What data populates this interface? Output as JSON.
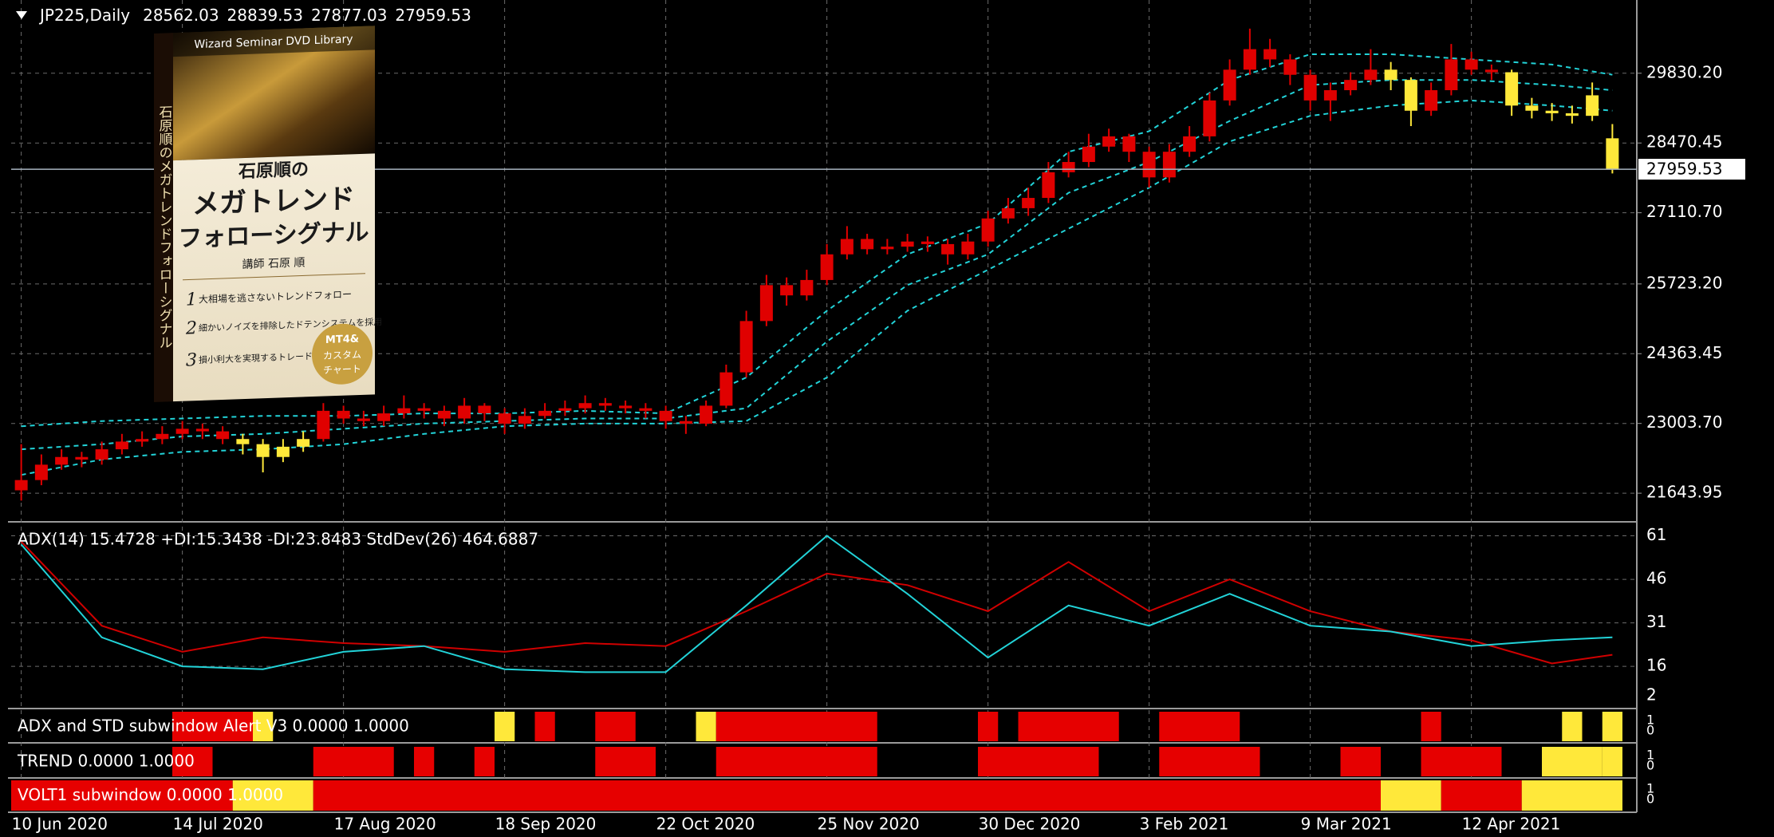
{
  "chart_data": [
    {
      "type": "candlestick",
      "title": "JP225,Daily",
      "categories": [
        "10 Jun 2020",
        null,
        null,
        null,
        null,
        null,
        null,
        null,
        "14 Jul 2020",
        null,
        null,
        null,
        null,
        null,
        null,
        null,
        "17 Aug 2020",
        null,
        null,
        null,
        null,
        null,
        null,
        null,
        "18 Sep 2020",
        null,
        null,
        null,
        null,
        null,
        null,
        null,
        "22 Oct 2020",
        null,
        null,
        null,
        null,
        null,
        null,
        null,
        "25 Nov 2020",
        null,
        null,
        null,
        null,
        null,
        null,
        null,
        "30 Dec 2020",
        null,
        null,
        null,
        null,
        null,
        null,
        null,
        "3 Feb 2021",
        null,
        null,
        null,
        null,
        null,
        null,
        null,
        "9 Mar 2021",
        null,
        null,
        null,
        null,
        null,
        null,
        null,
        "12 Apr 2021",
        null,
        null,
        null,
        null,
        null,
        null,
        null
      ],
      "open": [
        21700,
        21900,
        22200,
        22350,
        22300,
        22500,
        22650,
        22700,
        22800,
        22900,
        22850,
        22700,
        22600,
        22350,
        22550,
        22700,
        23250,
        23100,
        23050,
        23200,
        23300,
        23250,
        23100,
        23350,
        23200,
        23000,
        23150,
        23250,
        23300,
        23400,
        23350,
        23300,
        23250,
        23050,
        23000,
        23350,
        24000,
        25000,
        25700,
        25500,
        25800,
        26300,
        26600,
        26400,
        26450,
        26550,
        26500,
        26300,
        26550,
        27000,
        27200,
        27400,
        27900,
        28100,
        28400,
        28600,
        28300,
        27800,
        28300,
        28600,
        29300,
        29900,
        30300,
        30100,
        29800,
        29300,
        29500,
        29700,
        29900,
        29700,
        29100,
        29500,
        30100,
        29900,
        29850,
        29200,
        29100,
        29050,
        29000,
        28562.03
      ],
      "high": [
        22600,
        22400,
        22500,
        22450,
        22650,
        22800,
        22850,
        22950,
        23050,
        23000,
        22950,
        22800,
        22700,
        22700,
        22850,
        23400,
        23350,
        23250,
        23350,
        23550,
        23400,
        23350,
        23500,
        23400,
        23300,
        23300,
        23400,
        23450,
        23550,
        23500,
        23450,
        23400,
        23350,
        23150,
        23450,
        24150,
        25200,
        25900,
        25850,
        26000,
        26500,
        26850,
        26700,
        26600,
        26700,
        26650,
        26600,
        26700,
        27150,
        27400,
        27600,
        28100,
        28300,
        28650,
        28750,
        28650,
        28400,
        28450,
        28800,
        29450,
        30100,
        30700,
        30500,
        30200,
        29900,
        29650,
        29850,
        30300,
        30050,
        29750,
        29650,
        30400,
        30250,
        30000,
        29900,
        29350,
        29250,
        29200,
        29650,
        28839.53
      ],
      "low": [
        21500,
        21800,
        22100,
        22150,
        22200,
        22400,
        22550,
        22600,
        22700,
        22700,
        22600,
        22400,
        22050,
        22250,
        22450,
        22650,
        23000,
        22950,
        22950,
        23100,
        23100,
        22950,
        23000,
        23050,
        22800,
        22900,
        23100,
        23150,
        23200,
        23250,
        23200,
        23100,
        22900,
        22800,
        22950,
        23300,
        23900,
        24900,
        25300,
        25400,
        25700,
        26200,
        26300,
        26300,
        26350,
        26350,
        26100,
        26200,
        26450,
        26900,
        27050,
        27300,
        27800,
        28000,
        28300,
        28100,
        27600,
        27700,
        28200,
        28500,
        29200,
        29800,
        29950,
        29600,
        29100,
        28900,
        29400,
        29600,
        29500,
        28800,
        29000,
        29400,
        29800,
        29700,
        29000,
        28950,
        28900,
        28850,
        28900,
        27877.03
      ],
      "close": [
        21900,
        22200,
        22350,
        22300,
        22500,
        22650,
        22700,
        22800,
        22900,
        22850,
        22700,
        22600,
        22350,
        22550,
        22700,
        23250,
        23100,
        23050,
        23200,
        23300,
        23250,
        23100,
        23350,
        23200,
        23000,
        23150,
        23250,
        23300,
        23400,
        23350,
        23300,
        23250,
        23050,
        23000,
        23350,
        24000,
        25000,
        25700,
        25500,
        25800,
        26300,
        26600,
        26400,
        26450,
        26550,
        26500,
        26300,
        26550,
        27000,
        27200,
        27400,
        27900,
        28100,
        28400,
        28600,
        28300,
        27800,
        28300,
        28600,
        29300,
        29900,
        30300,
        30100,
        29800,
        29300,
        29500,
        29700,
        29900,
        29700,
        29100,
        29500,
        30100,
        29900,
        29850,
        29200,
        29100,
        29050,
        29000,
        29400,
        27959.53
      ],
      "colors": [
        "#e00000",
        "#e00000",
        "#e00000",
        "#e00000",
        "#e00000",
        "#e00000",
        "#e00000",
        "#e00000",
        "#e00000",
        "#e00000",
        "#e00000",
        "#ffe83a",
        "#ffe83a",
        "#ffe83a",
        "#ffe83a",
        "#e00000",
        "#e00000",
        "#e00000",
        "#e00000",
        "#e00000",
        "#e00000",
        "#e00000",
        "#e00000",
        "#e00000",
        "#e00000",
        "#e00000",
        "#e00000",
        "#e00000",
        "#e00000",
        "#e00000",
        "#e00000",
        "#e00000",
        "#e00000",
        "#e00000",
        "#e00000",
        "#e00000",
        "#e00000",
        "#e00000",
        "#e00000",
        "#e00000",
        "#e00000",
        "#e00000",
        "#e00000",
        "#e00000",
        "#e00000",
        "#e00000",
        "#e00000",
        "#e00000",
        "#e00000",
        "#e00000",
        "#e00000",
        "#e00000",
        "#e00000",
        "#e00000",
        "#e00000",
        "#e00000",
        "#e00000",
        "#e00000",
        "#e00000",
        "#e00000",
        "#e00000",
        "#e00000",
        "#e00000",
        "#e00000",
        "#e00000",
        "#e00000",
        "#e00000",
        "#e00000",
        "#ffe83a",
        "#ffe83a",
        "#e00000",
        "#e00000",
        "#e00000",
        "#e00000",
        "#ffe83a",
        "#ffe83a",
        "#ffe83a",
        "#ffe83a",
        "#ffe83a",
        "#ffe83a"
      ],
      "ylim": [
        21117,
        31258
      ],
      "yticks": [
        {
          "value": 29830.2,
          "label": "29830.20"
        },
        {
          "value": 28470.45,
          "label": "28470.45"
        },
        {
          "value": 27110.7,
          "label": "27110.70"
        },
        {
          "value": 25723.2,
          "label": "25723.20"
        },
        {
          "value": 24363.45,
          "label": "24363.45"
        },
        {
          "value": 23003.7,
          "label": "23003.70"
        },
        {
          "value": 21643.95,
          "label": "21643.95"
        }
      ],
      "grid": true,
      "bands": {
        "x": [
          0,
          4,
          8,
          12,
          16,
          20,
          24,
          28,
          32,
          36,
          40,
          44,
          48,
          52,
          56,
          60,
          64,
          68,
          72,
          76,
          79
        ],
        "color": "#22d3d8",
        "series": [
          {
            "values": [
              22950,
              23050,
              23100,
              23150,
              23150,
              23200,
              23200,
              23250,
              23200,
              23900,
              25200,
              26300,
              26900,
              28300,
              28700,
              29700,
              30200,
              30200,
              30100,
              30000,
              29800
            ]
          },
          {
            "values": [
              22500,
              22600,
              22750,
              22800,
              22900,
              23000,
              23050,
              23100,
              23100,
              23300,
              24600,
              25700,
              26300,
              27500,
              28100,
              28900,
              29600,
              29700,
              29700,
              29600,
              29500
            ]
          },
          {
            "values": [
              22000,
              22300,
              22450,
              22500,
              22600,
              22800,
              22950,
              23000,
              23000,
              23050,
              23900,
              25200,
              26000,
              26800,
              27600,
              28500,
              29000,
              29200,
              29300,
              29200,
              29100
            ]
          }
        ]
      }
    },
    {
      "type": "line",
      "title": "ADX(14) 15.4728 +DI:15.3438 -DI:23.8483  StdDev(26) 464.6887",
      "x": [
        0,
        4,
        8,
        12,
        16,
        20,
        24,
        28,
        32,
        36,
        40,
        44,
        48,
        52,
        56,
        60,
        64,
        68,
        72,
        76,
        79
      ],
      "series": [
        {
          "color": "#d00000",
          "values": [
            59,
            30,
            21,
            26,
            24,
            23,
            21,
            24,
            23,
            35,
            48,
            44,
            35,
            52,
            35,
            46,
            35,
            28,
            25,
            17,
            20
          ]
        },
        {
          "color": "#22d3d8",
          "values": [
            58,
            26,
            16,
            15,
            21,
            23,
            15,
            14,
            14,
            37,
            61,
            41,
            19,
            37,
            30,
            41,
            30,
            28,
            23,
            25,
            26
          ]
        }
      ],
      "ylim": [
        2,
        65
      ],
      "yticks": [
        61,
        46,
        31,
        16,
        2
      ],
      "grid": true
    },
    {
      "type": "segments",
      "title": "ADX and STD subwindow Alert V3 0.0000 1.0000",
      "ylim": [
        0,
        1
      ],
      "yticks": [
        1,
        0
      ],
      "segments": [
        {
          "from": 8,
          "to": 11,
          "color": "#e60000"
        },
        {
          "from": 12,
          "to": 12,
          "color": "#ffe83a"
        },
        {
          "from": 24,
          "to": 24,
          "color": "#ffe83a"
        },
        {
          "from": 26,
          "to": 26,
          "color": "#e60000"
        },
        {
          "from": 29,
          "to": 30,
          "color": "#e60000"
        },
        {
          "from": 34,
          "to": 34,
          "color": "#ffe83a"
        },
        {
          "from": 35,
          "to": 42,
          "color": "#e60000"
        },
        {
          "from": 48,
          "to": 48,
          "color": "#e60000"
        },
        {
          "from": 50,
          "to": 54,
          "color": "#e60000"
        },
        {
          "from": 57,
          "to": 60,
          "color": "#e60000"
        },
        {
          "from": 70,
          "to": 70,
          "color": "#e60000"
        },
        {
          "from": 77,
          "to": 77,
          "color": "#ffe83a"
        },
        {
          "from": 79,
          "to": 79,
          "color": "#ffe83a"
        }
      ]
    },
    {
      "type": "segments",
      "title": "TREND 0.0000 1.0000",
      "ylim": [
        0,
        1
      ],
      "yticks": [
        1,
        0
      ],
      "segments": [
        {
          "from": 8,
          "to": 9,
          "color": "#e60000"
        },
        {
          "from": 15,
          "to": 18,
          "color": "#e60000"
        },
        {
          "from": 20,
          "to": 20,
          "color": "#e60000"
        },
        {
          "from": 23,
          "to": 23,
          "color": "#e60000"
        },
        {
          "from": 29,
          "to": 31,
          "color": "#e60000"
        },
        {
          "from": 35,
          "to": 42,
          "color": "#e60000"
        },
        {
          "from": 48,
          "to": 53,
          "color": "#e60000"
        },
        {
          "from": 57,
          "to": 61,
          "color": "#e60000"
        },
        {
          "from": 66,
          "to": 67,
          "color": "#e60000"
        },
        {
          "from": 70,
          "to": 73,
          "color": "#e60000"
        },
        {
          "from": 76,
          "to": 78,
          "color": "#ffe83a"
        },
        {
          "from": 79,
          "to": 79,
          "color": "#ffe83a"
        }
      ]
    },
    {
      "type": "segments",
      "title": "VOLT1 subwindow 0.0000 1.0000",
      "ylim": [
        0,
        1
      ],
      "yticks": [
        1,
        0
      ],
      "segments": [
        {
          "from": 0,
          "to": 10,
          "color": "#e60000"
        },
        {
          "from": 11,
          "to": 14,
          "color": "#ffe83a"
        },
        {
          "from": 15,
          "to": 67,
          "color": "#e60000"
        },
        {
          "from": 68,
          "to": 70,
          "color": "#ffe83a"
        },
        {
          "from": 71,
          "to": 74,
          "color": "#e60000"
        },
        {
          "from": 75,
          "to": 79,
          "color": "#ffe83a"
        }
      ]
    }
  ],
  "advertisement": {
    "series": "Wizard Seminar DVD Library",
    "author_of": "石原順の",
    "title_1": "メガトレンド",
    "title_2": "フォローシグナル",
    "lecturer": "講師 石原 順",
    "spine": "石原順のメガトレンドフォローシグナル",
    "points": [
      "大相場を逃さないトレンドフォロー",
      "細かいノイズを排除したドテンシステムを採用",
      "損小利大を実現するトレードロジック"
    ],
    "numbers": [
      "1",
      "2",
      "3"
    ],
    "badge": "MT4&",
    "badge_2": "カスタム",
    "badge_3": "チャート"
  }
}
